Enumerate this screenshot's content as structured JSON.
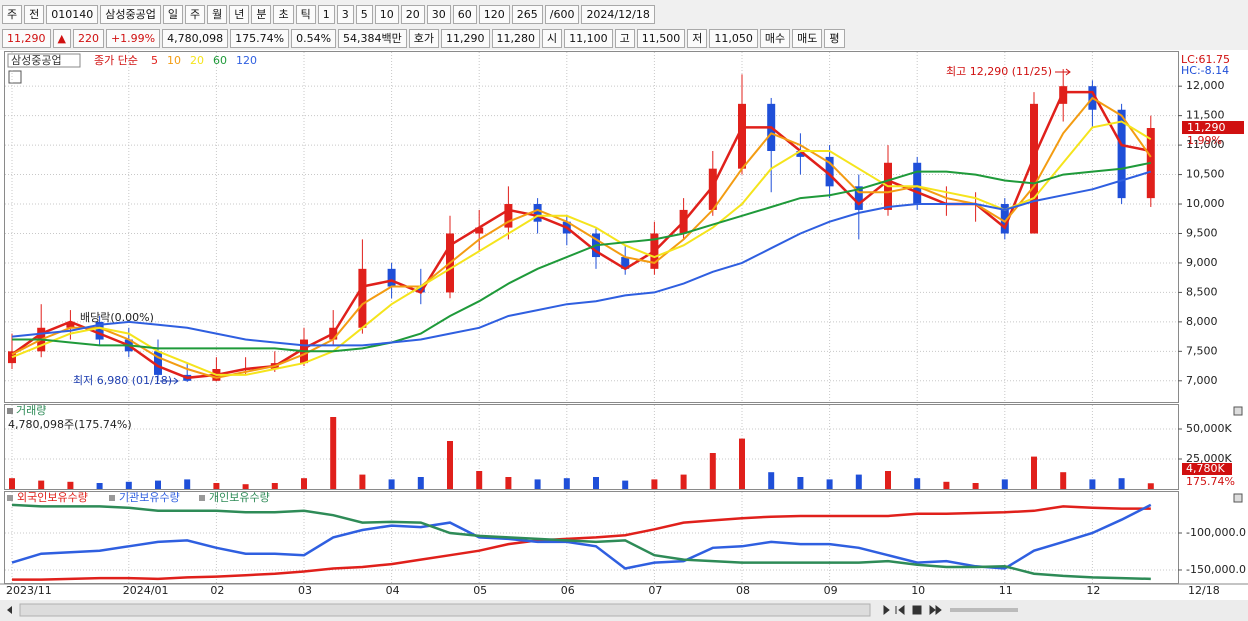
{
  "toolbar": {
    "row1": [
      "주",
      "전",
      "010140",
      "삼성중공업",
      "일",
      "주",
      "월",
      "년",
      "분",
      "초",
      "틱",
      "1",
      "3",
      "5",
      "10",
      "20",
      "30",
      "60",
      "120",
      "265",
      "/600",
      "2024/12/18"
    ],
    "row2": [
      "11,290",
      "▲",
      "220",
      "+1.99%",
      "4,780,098",
      "175.74%",
      "0.54%",
      "54,384백만",
      "호가",
      "11,290",
      "11,280",
      "시",
      "11,100",
      "고",
      "11,500",
      "저",
      "11,050",
      "매수",
      "매도",
      "평"
    ]
  },
  "chart_data": [
    {
      "type": "candlestick",
      "legend_title": "삼성중공업",
      "legend_label": "종가 단순",
      "up_color": "#e0201b",
      "down_color": "#1f4fd8",
      "open": [
        7300,
        7500,
        7900,
        8000,
        7700,
        7500,
        7100,
        7000,
        7200,
        7200,
        7300,
        7700,
        7900,
        8900,
        8600,
        8500,
        9500,
        9600,
        10000,
        9700,
        9500,
        9100,
        8900,
        9500,
        9900,
        10600,
        11700,
        10900,
        10800,
        10300,
        9900,
        10700,
        10000,
        10000,
        10000,
        9500,
        11700,
        12000,
        11600,
        10100
      ],
      "high": [
        7800,
        8300,
        8200,
        8100,
        7900,
        7700,
        7300,
        7400,
        7400,
        7500,
        7900,
        8200,
        9400,
        9000,
        8900,
        9800,
        9900,
        10300,
        10100,
        9800,
        9600,
        9300,
        9700,
        10100,
        10900,
        12200,
        11800,
        11200,
        11000,
        10500,
        11000,
        10800,
        10300,
        10200,
        10100,
        11900,
        12290,
        12100,
        11700,
        11500
      ],
      "low": [
        7200,
        7400,
        7700,
        7600,
        7400,
        7000,
        6980,
        6990,
        7100,
        7150,
        7250,
        7600,
        7800,
        8400,
        8300,
        8400,
        9200,
        9400,
        9500,
        9300,
        8900,
        8800,
        8800,
        9400,
        9800,
        10500,
        10200,
        10500,
        10100,
        9400,
        9800,
        9900,
        9800,
        9700,
        9400,
        9500,
        11400,
        11300,
        10000,
        9950
      ],
      "close": [
        7500,
        7900,
        8000,
        7700,
        7500,
        7100,
        7000,
        7200,
        7200,
        7300,
        7700,
        7900,
        8900,
        8600,
        8500,
        9500,
        9600,
        10000,
        9700,
        9500,
        9100,
        8900,
        9500,
        9900,
        10600,
        11700,
        10900,
        10800,
        10300,
        9900,
        10700,
        10000,
        10000,
        10000,
        9500,
        11700,
        12000,
        11600,
        10100,
        11290
      ],
      "series": [
        {
          "name": "5",
          "color": "#e0201b",
          "values": [
            7450,
            7800,
            8000,
            7800,
            7600,
            7250,
            7050,
            7100,
            7200,
            7250,
            7550,
            7800,
            8600,
            8700,
            8500,
            9300,
            9600,
            9900,
            9800,
            9600,
            9200,
            8900,
            9200,
            9700,
            10300,
            11300,
            11300,
            10900,
            10500,
            10000,
            10400,
            10200,
            10000,
            10000,
            9600,
            10800,
            11900,
            11900,
            11000,
            10900
          ]
        },
        {
          "name": "10",
          "color": "#f39c12",
          "values": [
            7450,
            7700,
            7900,
            7900,
            7700,
            7400,
            7200,
            7050,
            7150,
            7250,
            7450,
            7700,
            8300,
            8600,
            8600,
            9000,
            9400,
            9700,
            9900,
            9700,
            9400,
            9100,
            9000,
            9400,
            9900,
            10600,
            11200,
            11000,
            10700,
            10200,
            10200,
            10300,
            10100,
            10000,
            9700,
            10300,
            11200,
            11800,
            11500,
            10800
          ]
        },
        {
          "name": "20",
          "color": "#f5e41c",
          "values": [
            7400,
            7600,
            7800,
            7900,
            7800,
            7500,
            7300,
            7100,
            7100,
            7200,
            7300,
            7500,
            7900,
            8300,
            8600,
            8900,
            9200,
            9500,
            9800,
            9800,
            9600,
            9300,
            9100,
            9300,
            9600,
            10000,
            10600,
            10900,
            10900,
            10600,
            10300,
            10300,
            10200,
            10100,
            9900,
            10100,
            10700,
            11300,
            11400,
            11100
          ]
        },
        {
          "name": "60",
          "color": "#1f9a3a",
          "values": [
            7700,
            7700,
            7650,
            7600,
            7600,
            7550,
            7550,
            7550,
            7550,
            7550,
            7500,
            7500,
            7550,
            7650,
            7800,
            8100,
            8350,
            8650,
            8900,
            9100,
            9300,
            9350,
            9400,
            9500,
            9650,
            9800,
            9950,
            10100,
            10150,
            10250,
            10400,
            10550,
            10550,
            10500,
            10400,
            10350,
            10500,
            10550,
            10600,
            10700
          ]
        },
        {
          "name": "120",
          "color": "#2f5fe0",
          "values": [
            7750,
            7800,
            7850,
            7950,
            8000,
            7950,
            7900,
            7800,
            7700,
            7650,
            7600,
            7600,
            7600,
            7650,
            7700,
            7800,
            7900,
            8100,
            8200,
            8300,
            8350,
            8450,
            8500,
            8650,
            8850,
            9000,
            9250,
            9500,
            9700,
            9850,
            9950,
            10000,
            10000,
            10000,
            9900,
            10050,
            10150,
            10250,
            10400,
            10550
          ]
        }
      ],
      "annotations": [
        "최고 12,290 (11/25)",
        "최저 6,980 (01/18)",
        "배당락(0.00%)"
      ],
      "lc": "LC:61.75",
      "hc": "HC:-8.14",
      "last_label": "11,290",
      "change_label": "1.99%",
      "ylim": [
        6640,
        12580
      ],
      "yticks": [
        {
          "value": 7000,
          "label": "7,000"
        },
        {
          "value": 7500,
          "label": "7,500"
        },
        {
          "value": 8000,
          "label": "8,000"
        },
        {
          "value": 8500,
          "label": "8,500"
        },
        {
          "value": 9000,
          "label": "9,000"
        },
        {
          "value": 9500,
          "label": "9,500"
        },
        {
          "value": 10000,
          "label": "10,000"
        },
        {
          "value": 10500,
          "label": "10,500"
        },
        {
          "value": 11000,
          "label": "11,000"
        },
        {
          "value": 11500,
          "label": "11,500"
        },
        {
          "value": 12000,
          "label": "12,000"
        }
      ],
      "grid": true
    },
    {
      "type": "bar",
      "title": "거래량",
      "subtitle": "4,780,098주(175.74%)",
      "values": [
        9000,
        7000,
        6000,
        5000,
        6000,
        7000,
        8000,
        5000,
        4000,
        5000,
        9000,
        60000,
        12000,
        8000,
        10000,
        40000,
        15000,
        10000,
        8000,
        9000,
        10000,
        7000,
        8000,
        12000,
        30000,
        42000,
        14000,
        10000,
        8000,
        12000,
        15000,
        9000,
        6000,
        5000,
        8000,
        27000,
        14000,
        8000,
        9000,
        4780
      ],
      "last_label": "4,780K",
      "ratio_label": "175.74%",
      "ylim": [
        0,
        70000
      ],
      "yticks": [
        {
          "value": 25000,
          "label": "25,000K"
        },
        {
          "value": 50000,
          "label": "50,000K"
        }
      ],
      "grid": true
    },
    {
      "type": "line",
      "categories": [
        "2023/11",
        null,
        null,
        null,
        "2024/01",
        null,
        null,
        "02",
        null,
        null,
        "03",
        null,
        null,
        "04",
        null,
        null,
        "05",
        null,
        null,
        "06",
        null,
        null,
        "07",
        null,
        null,
        "08",
        null,
        null,
        "09",
        null,
        null,
        "10",
        null,
        null,
        "11",
        null,
        null,
        "12",
        null,
        null
      ],
      "last_date": "12/18",
      "series": [
        {
          "name": "외국인보유수량",
          "color": "#e0201b",
          "values": [
            -163000,
            -163000,
            -162000,
            -161000,
            -161000,
            -162000,
            -160000,
            -159000,
            -157000,
            -155000,
            -152000,
            -148000,
            -146000,
            -142000,
            -136000,
            -130000,
            -124000,
            -115000,
            -110000,
            -108000,
            -106000,
            -103000,
            -95000,
            -86000,
            -83000,
            -80000,
            -78000,
            -77000,
            -77000,
            -77000,
            -77000,
            -74000,
            -74000,
            -73000,
            -72000,
            -70000,
            -64000,
            -66000,
            -67000,
            -67000
          ]
        },
        {
          "name": "기관보유수량",
          "color": "#2f5fe0",
          "values": [
            -140000,
            -128000,
            -126000,
            -124000,
            -118000,
            -112000,
            -110000,
            -120000,
            -128000,
            -128000,
            -130000,
            -106000,
            -96000,
            -90000,
            -92000,
            -86000,
            -106000,
            -108000,
            -112000,
            -112000,
            -118000,
            -148000,
            -140000,
            -138000,
            -120000,
            -118000,
            -112000,
            -115000,
            -115000,
            -120000,
            -130000,
            -140000,
            -138000,
            -145000,
            -148000,
            -124000,
            -112000,
            -100000,
            -82000,
            -62000
          ]
        },
        {
          "name": "개인보유수량",
          "color": "#2e8b57",
          "values": [
            -62000,
            -64000,
            -64000,
            -64000,
            -66000,
            -70000,
            -70000,
            -70000,
            -72000,
            -72000,
            -70000,
            -76000,
            -86000,
            -85000,
            -86000,
            -100000,
            -104000,
            -106000,
            -108000,
            -110000,
            -112000,
            -110000,
            -130000,
            -136000,
            -138000,
            -140000,
            -140000,
            -140000,
            -140000,
            -140000,
            -138000,
            -143000,
            -146000,
            -146000,
            -145000,
            -155000,
            -158000,
            -160000,
            -161000,
            -162000
          ]
        }
      ],
      "ylim": [
        -167600,
        -44600
      ],
      "yticks": [
        {
          "value": -150000,
          "label": "-150,000.0"
        },
        {
          "value": -100000,
          "label": "-100,000.0"
        }
      ],
      "grid": true
    }
  ]
}
